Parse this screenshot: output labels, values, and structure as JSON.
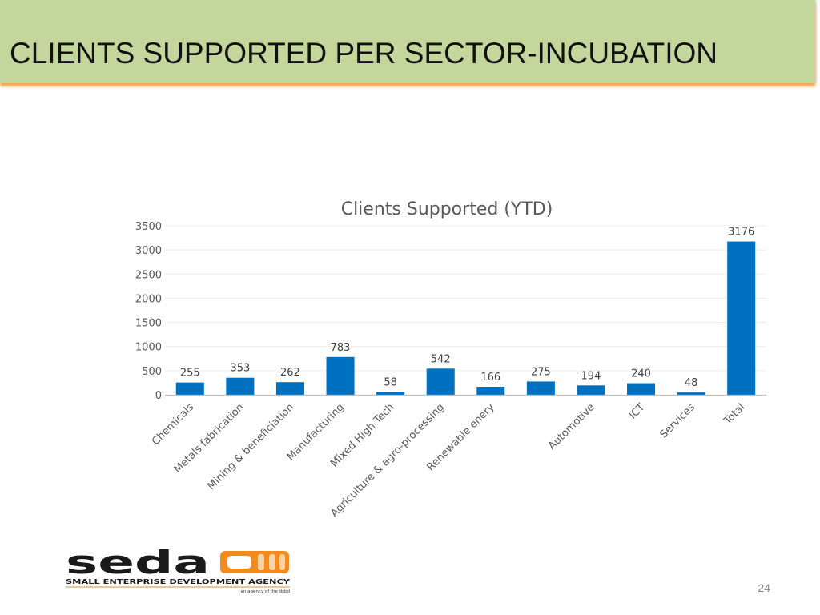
{
  "slide": {
    "title": "CLIENTS SUPPORTED PER SECTOR-INCUBATION",
    "page_number": "24"
  },
  "logo": {
    "wordmark": "seda",
    "tagline": "SMALL ENTERPRISE DEVELOPMENT AGENCY",
    "subtagline": "an agency of the dsbd"
  },
  "colors": {
    "header_band": "#c3d69b",
    "header_shadow": "#f4a64f",
    "bar": "#0070c0",
    "logo_orange": "#f28a1e"
  },
  "chart_data": {
    "type": "bar",
    "title": "Clients Supported (YTD)",
    "categories": [
      "Chemicals",
      "Metals fabrication",
      "Mining & beneficiation",
      "Manufacturing",
      "Mixed High Tech",
      "Agriculture & agro-processing",
      "Renewable enery",
      "",
      "Automotive",
      "ICT",
      "Services",
      "Total"
    ],
    "values": [
      255,
      353,
      262,
      783,
      58,
      542,
      166,
      275,
      194,
      240,
      48,
      3176
    ],
    "ylim": [
      0,
      3500
    ],
    "yticks": [
      0,
      500,
      1000,
      1500,
      2000,
      2500,
      3000,
      3500
    ],
    "grid": true,
    "legend": "none",
    "data_labels": true
  }
}
